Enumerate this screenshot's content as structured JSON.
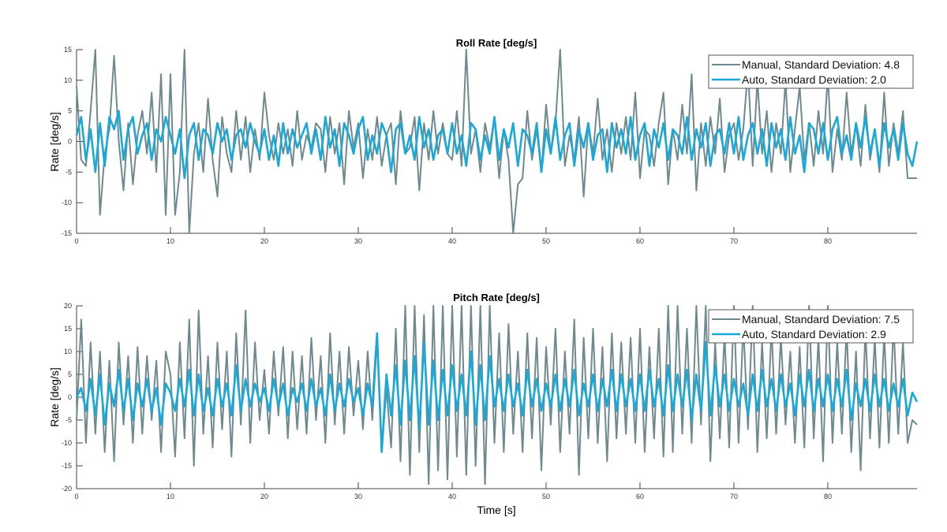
{
  "chart_data": [
    {
      "type": "line",
      "title": "Roll Rate [deg/s]",
      "xlabel": "",
      "ylabel": "Rate [deg/s]",
      "xlim": [
        0,
        89.5
      ],
      "ylim": [
        -15,
        15
      ],
      "xticks": [
        0,
        10,
        20,
        30,
        40,
        50,
        60,
        70,
        80
      ],
      "yticks": [
        -15,
        -10,
        -5,
        0,
        5,
        10,
        15
      ],
      "grid": false,
      "legend_position": "top-right",
      "x_step": 0.5,
      "series": [
        {
          "name": "Manual, Standard Deviation: 4.8",
          "color": "#6f8a8e",
          "values": [
            9,
            -3,
            -4,
            5,
            15,
            -12,
            -2,
            2,
            14,
            0,
            -8,
            3,
            -7,
            1,
            5,
            -2,
            8,
            -5,
            11,
            -12,
            11,
            -12,
            -5,
            15,
            -15,
            -2,
            3,
            -5,
            7,
            -3,
            -9,
            4,
            -2,
            -5,
            5,
            -3,
            4,
            -5,
            2,
            -3,
            8,
            1,
            -3,
            3,
            -2,
            2,
            -4,
            5,
            -3,
            1,
            -1,
            3,
            2,
            -5,
            4,
            -2,
            3,
            -7,
            5,
            -1,
            3,
            -6,
            2,
            -3,
            4,
            -4,
            1,
            3,
            -7,
            5,
            -2,
            -1,
            4,
            -8,
            3,
            -3,
            5,
            -2,
            3,
            -2,
            -3,
            5,
            -4,
            15,
            -2,
            2,
            -5,
            3,
            -1,
            4,
            -6,
            2,
            -3,
            -15,
            -7,
            -6,
            5,
            -3,
            2,
            -5,
            6,
            -2,
            3,
            15,
            -4,
            1,
            -3,
            4,
            -9,
            3,
            -2,
            7,
            -3,
            2,
            -5,
            3,
            -2,
            4,
            -3,
            8,
            -6,
            2,
            1,
            -4,
            3,
            8,
            -7,
            2,
            -3,
            6,
            -2,
            11,
            -8,
            3,
            -4,
            4,
            -2,
            7,
            -5,
            1,
            3,
            -3,
            2,
            12,
            -4,
            10,
            -2,
            5,
            -5,
            3,
            -2,
            10,
            -5,
            2,
            9,
            -3,
            3,
            -4,
            5,
            -2,
            11,
            -5,
            2,
            -3,
            8,
            -2,
            3,
            -4,
            6,
            -3,
            2,
            -5,
            8,
            -4,
            3,
            -2,
            5,
            -6,
            -6,
            -6
          ]
        },
        {
          "name": "Auto, Standard Deviation: 2.0",
          "color": "#1aa8d8",
          "values": [
            1,
            4,
            -3,
            2,
            -5,
            3,
            -4,
            4,
            2,
            5,
            -3,
            2,
            4,
            -2,
            1,
            3,
            -3,
            2,
            0,
            4,
            1,
            -2,
            2,
            -6,
            1,
            3,
            -3,
            2,
            1,
            -2,
            3,
            0,
            2,
            -3,
            1,
            2,
            -1,
            3,
            0,
            -2,
            2,
            -3,
            1,
            -4,
            3,
            -2,
            2,
            -1,
            1,
            3,
            -2,
            2,
            -3,
            4,
            -1,
            2,
            -4,
            3,
            1,
            -2,
            2,
            4,
            -3,
            1,
            -2,
            3,
            1,
            -5,
            2,
            3,
            -2,
            1,
            -3,
            4,
            -1,
            2,
            -3,
            1,
            2,
            -2,
            3,
            -2,
            1,
            -4,
            3,
            2,
            -3,
            1,
            -2,
            4,
            -3,
            2,
            -1,
            3,
            -4,
            2,
            1,
            -2,
            3,
            -5,
            2,
            -2,
            4,
            -3,
            1,
            3,
            -4,
            2,
            -1,
            3,
            -3,
            1,
            2,
            -5,
            3,
            -1,
            2,
            -2,
            4,
            -3,
            1,
            3,
            -4,
            2,
            -1,
            3,
            -3,
            2,
            1,
            -2,
            4,
            -3,
            2,
            -1,
            3,
            -4,
            1,
            2,
            -2,
            3,
            -2,
            4,
            -3,
            1,
            3,
            -2,
            2,
            -4,
            3,
            -1,
            2,
            -3,
            4,
            -2,
            1,
            -5,
            3,
            2,
            -2,
            3,
            -3,
            2,
            4,
            -2,
            1,
            -3,
            3,
            -1,
            4,
            -2,
            2,
            -4,
            3,
            -1,
            2,
            -3,
            3,
            -2,
            -4,
            0
          ]
        }
      ]
    },
    {
      "type": "line",
      "title": "Pitch Rate [deg/s]",
      "xlabel": "Time [s]",
      "ylabel": "Rate [deg/s]",
      "xlim": [
        0,
        89.5
      ],
      "ylim": [
        -20,
        20
      ],
      "xticks": [
        0,
        10,
        20,
        30,
        40,
        50,
        60,
        70,
        80
      ],
      "yticks": [
        -20,
        -15,
        -10,
        -5,
        0,
        5,
        10,
        15,
        20
      ],
      "grid": false,
      "legend_position": "top-right",
      "x_step": 0.5,
      "series": [
        {
          "name": "Manual, Standard Deviation: 7.5",
          "color": "#6f8a8e",
          "values": [
            -5,
            17,
            -10,
            12,
            -8,
            10,
            -12,
            8,
            -14,
            12,
            -6,
            9,
            -10,
            11,
            -8,
            9,
            -5,
            8,
            -12,
            10,
            5,
            -13,
            12,
            -9,
            17,
            -15,
            19,
            -8,
            9,
            -11,
            12,
            -7,
            10,
            -13,
            14,
            -6,
            19,
            -10,
            12,
            -5,
            6,
            -8,
            10,
            -4,
            11,
            -9,
            10,
            -7,
            9,
            -8,
            13,
            -5,
            9,
            -10,
            14,
            -6,
            10,
            -8,
            11,
            -4,
            8,
            -7,
            10,
            -5,
            13,
            -12,
            2,
            -11,
            15,
            -14,
            20,
            -17,
            20,
            -12,
            18,
            -19,
            20,
            -16,
            20,
            -18,
            20,
            -13,
            20,
            -17,
            20,
            -15,
            20,
            -19,
            20,
            -10,
            14,
            -12,
            16,
            -8,
            10,
            -12,
            14,
            -9,
            13,
            -16,
            11,
            -6,
            15,
            -12,
            10,
            -8,
            17,
            -17,
            13,
            -9,
            15,
            -10,
            11,
            -14,
            14,
            -9,
            12,
            -8,
            13,
            -10,
            15,
            -12,
            11,
            -9,
            15,
            -13,
            20,
            -12,
            20,
            -8,
            15,
            -10,
            20,
            -6,
            20,
            -14,
            12,
            -9,
            14,
            -11,
            20,
            -10,
            16,
            -7,
            20,
            -12,
            12,
            -9,
            15,
            -8,
            13,
            -6,
            10,
            -10,
            11,
            -11,
            20,
            -9,
            13,
            -14,
            20,
            -10,
            12,
            -8,
            15,
            -12,
            10,
            -16,
            15,
            -9,
            13,
            -11,
            14,
            -10,
            16,
            -8,
            12,
            -10,
            -5,
            -6
          ]
        },
        {
          "name": "Auto, Standard Deviation: 2.9",
          "color": "#1aa8d8",
          "values": [
            0,
            2,
            -3,
            4,
            -4,
            5,
            -6,
            3,
            -2,
            6,
            -3,
            4,
            -5,
            3,
            -2,
            4,
            -3,
            2,
            -6,
            3,
            1,
            -3,
            4,
            -2,
            6,
            -4,
            5,
            -3,
            2,
            -4,
            4,
            -2,
            3,
            -4,
            7,
            -3,
            4,
            -2,
            3,
            -1,
            2,
            -3,
            4,
            -2,
            3,
            -4,
            2,
            -1,
            3,
            -3,
            4,
            -2,
            2,
            -4,
            5,
            -3,
            3,
            -2,
            4,
            -1,
            2,
            -4,
            3,
            -2,
            14,
            -12,
            5,
            -4,
            7,
            -6,
            8,
            -5,
            9,
            -7,
            12,
            -6,
            8,
            -5,
            6,
            -4,
            7,
            -3,
            5,
            -4,
            10,
            -6,
            7,
            -5,
            9,
            -2,
            4,
            -3,
            5,
            -2,
            3,
            -4,
            6,
            -2,
            4,
            -3,
            3,
            -2,
            5,
            -3,
            4,
            -2,
            6,
            -4,
            3,
            -2,
            5,
            -3,
            4,
            -2,
            6,
            -3,
            5,
            -2,
            4,
            -3,
            5,
            -3,
            6,
            -2,
            4,
            -4,
            7,
            -3,
            5,
            -2,
            6,
            -5,
            5,
            -3,
            12,
            -4,
            7,
            -2,
            5,
            -3,
            4,
            -2,
            3,
            -4,
            5,
            -3,
            6,
            -2,
            4,
            -3,
            5,
            -2,
            3,
            -4,
            5,
            -2,
            6,
            -3,
            4,
            -2,
            5,
            -3,
            4,
            -2,
            6,
            -5,
            3,
            -2,
            4,
            -3,
            5,
            -2,
            4,
            -3,
            3,
            -2,
            4,
            -4,
            1,
            -1
          ]
        }
      ]
    }
  ]
}
